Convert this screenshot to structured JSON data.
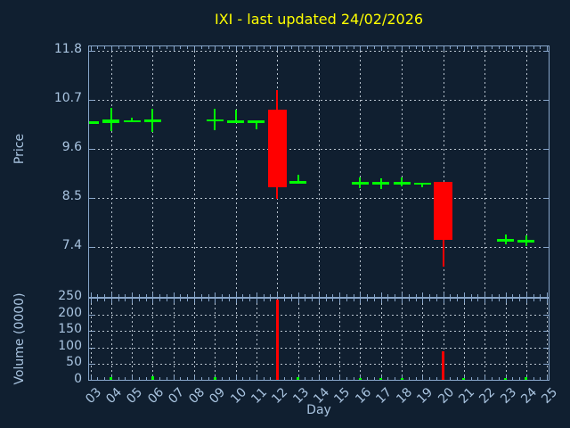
{
  "title": {
    "text": "IXI - last updated 24/02/2026"
  },
  "colors": {
    "background": "#101f30",
    "axis": "#87a5c9",
    "tick_label": "#a9c4e0",
    "grid": "#b8c3ce",
    "title": "#ffff00",
    "up": "#00ff00",
    "down": "#ff0000"
  },
  "axes": {
    "x_label": "Day",
    "price_label": "Price",
    "volume_label": "Volume (0000)",
    "price_tick_labels": [
      "11.8",
      "10.7",
      "9.6",
      "8.5",
      "7.4"
    ],
    "volume_tick_labels": [
      "250",
      "200",
      "150",
      "100",
      "50",
      "0"
    ],
    "day_tick_labels": [
      "03",
      "04",
      "05",
      "06",
      "07",
      "08",
      "09",
      "10",
      "11",
      "12",
      "13",
      "14",
      "15",
      "16",
      "17",
      "18",
      "19",
      "20",
      "21",
      "22",
      "23",
      "24",
      "25"
    ]
  },
  "chart_data": {
    "type": "candlestick_with_volume",
    "title": "IXI - last updated 24/02/2026",
    "xlabel": "Day",
    "ylabel_price": "Price",
    "ylabel_volume": "Volume (0000)",
    "price_axis_ticks": [
      11.8,
      10.7,
      9.6,
      8.5,
      7.4
    ],
    "price_axis_range": [
      6.26,
      11.92
    ],
    "volume_axis_ticks": [
      250,
      200,
      150,
      100,
      50,
      0
    ],
    "volume_axis_range": [
      0,
      250
    ],
    "x_axis_days": [
      3,
      4,
      5,
      6,
      7,
      8,
      9,
      10,
      11,
      12,
      13,
      14,
      15,
      16,
      17,
      18,
      19,
      20,
      21,
      22,
      23,
      24,
      25
    ],
    "grid": "dashed, price panel vertical every 2 days, volume panel vertical every day",
    "candles": [
      {
        "day": 3,
        "open": 10.22,
        "high": 10.22,
        "low": 10.22,
        "close": 10.22,
        "color": "green",
        "volume": 0
      },
      {
        "day": 4,
        "open": 10.19,
        "high": 10.52,
        "low": 10.01,
        "close": 10.26,
        "color": "green",
        "volume": 9
      },
      {
        "day": 5,
        "open": 10.2,
        "high": 10.31,
        "low": 10.2,
        "close": 10.25,
        "color": "green",
        "volume": 0
      },
      {
        "day": 6,
        "open": 10.21,
        "high": 10.51,
        "low": 9.99,
        "close": 10.26,
        "color": "green",
        "volume": 10
      },
      {
        "day": 9,
        "open": 10.22,
        "high": 10.51,
        "low": 10.02,
        "close": 10.27,
        "color": "green",
        "volume": 7
      },
      {
        "day": 10,
        "open": 10.19,
        "high": 10.49,
        "low": 10.19,
        "close": 10.25,
        "color": "green",
        "volume": 0
      },
      {
        "day": 11,
        "open": 10.19,
        "high": 10.25,
        "low": 10.04,
        "close": 10.25,
        "color": "green",
        "volume": 0
      },
      {
        "day": 12,
        "open": 10.49,
        "high": 10.92,
        "low": 8.49,
        "close": 8.74,
        "color": "red",
        "volume": 241
      },
      {
        "day": 13,
        "open": 8.82,
        "high": 9.03,
        "low": 8.82,
        "close": 8.88,
        "color": "green",
        "volume": 7
      },
      {
        "day": 16,
        "open": 8.81,
        "high": 8.96,
        "low": 8.72,
        "close": 8.86,
        "color": "green",
        "volume": 5
      },
      {
        "day": 17,
        "open": 8.81,
        "high": 8.94,
        "low": 8.71,
        "close": 8.86,
        "color": "green",
        "volume": 5
      },
      {
        "day": 18,
        "open": 8.81,
        "high": 8.97,
        "low": 8.76,
        "close": 8.86,
        "color": "green",
        "volume": 5
      },
      {
        "day": 19,
        "open": 8.8,
        "high": 8.85,
        "low": 8.74,
        "close": 8.85,
        "color": "green",
        "volume": 0
      },
      {
        "day": 20,
        "open": 8.86,
        "high": 8.86,
        "low": 6.97,
        "close": 7.57,
        "color": "red",
        "volume": 86
      },
      {
        "day": 23,
        "open": 7.53,
        "high": 7.69,
        "low": 7.46,
        "close": 7.58,
        "color": "green",
        "volume": 6
      },
      {
        "day": 24,
        "open": 7.51,
        "high": 7.66,
        "low": 7.43,
        "close": 7.56,
        "color": "green",
        "volume": 7
      }
    ],
    "volume_only_bars": [
      {
        "day": 21,
        "volume": 5,
        "color": "green"
      }
    ]
  }
}
